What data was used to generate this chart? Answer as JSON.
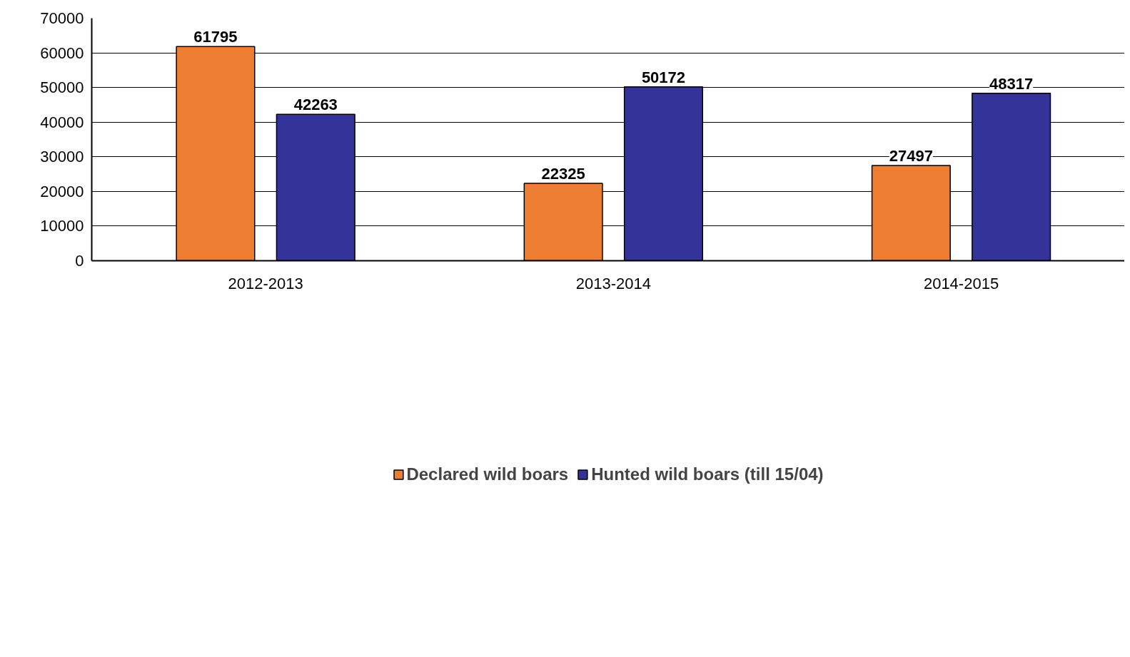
{
  "chart_data": {
    "type": "bar",
    "categories": [
      "2012-2013",
      "2013-2014",
      "2014-2015"
    ],
    "series": [
      {
        "name": "Declared wild boars",
        "color": "#ed7d31",
        "values": [
          61795,
          22325,
          27497
        ]
      },
      {
        "name": "Hunted wild boars (till 15/04)",
        "color": "#333399",
        "values": [
          42263,
          50172,
          48317
        ]
      }
    ],
    "ylim": [
      0,
      70000
    ],
    "yticks": [
      0,
      10000,
      20000,
      30000,
      40000,
      50000,
      60000,
      70000
    ],
    "grid": "y",
    "legend": "bottom",
    "data_labels": true
  }
}
